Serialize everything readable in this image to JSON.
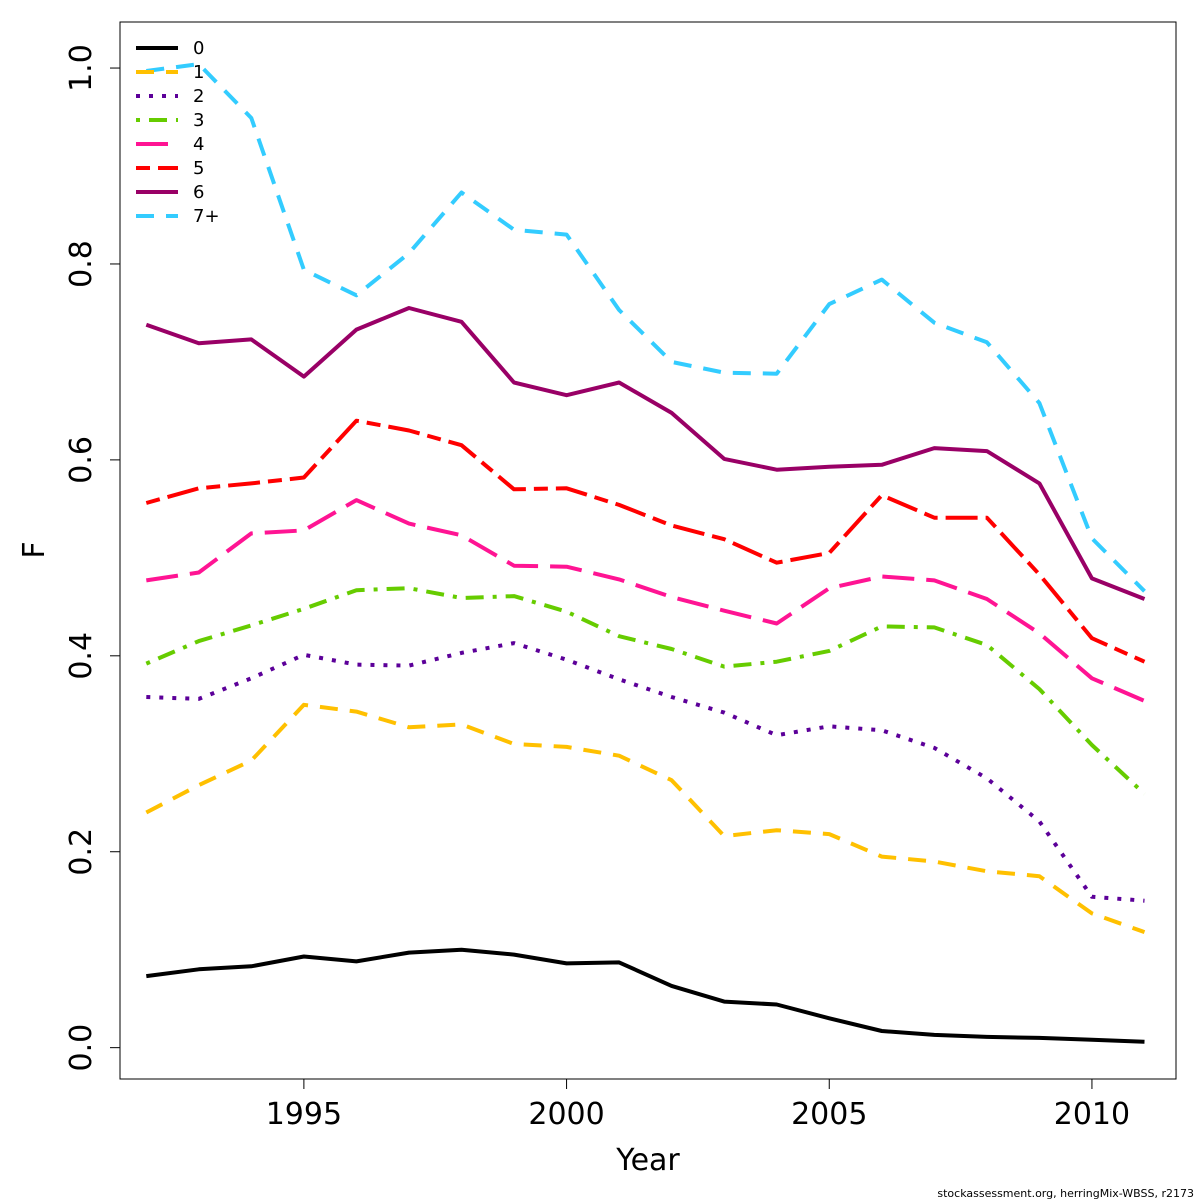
{
  "chart_data": {
    "type": "line",
    "xlabel": "Year",
    "ylabel": "F",
    "xlim": [
      1991.5,
      2011.6
    ],
    "ylim": [
      -0.032,
      1.047
    ],
    "x_ticks": [
      1995,
      2000,
      2005,
      2010
    ],
    "x_tick_labels": [
      "1995",
      "2000",
      "2005",
      "2010"
    ],
    "y_ticks": [
      0.0,
      0.2,
      0.4,
      0.6,
      0.8,
      1.0
    ],
    "y_tick_labels": [
      "0.0",
      "0.2",
      "0.4",
      "0.6",
      "0.8",
      "1.0"
    ],
    "legend_position": "top-left",
    "grid": false,
    "x": [
      1992,
      1993,
      1994,
      1995,
      1996,
      1997,
      1998,
      1999,
      2000,
      2001,
      2002,
      2003,
      2004,
      2005,
      2006,
      2007,
      2008,
      2009,
      2010,
      2011
    ],
    "series": [
      {
        "name": "0",
        "color": "#000000",
        "dash": "solid",
        "values": [
          0.073,
          0.08,
          0.083,
          0.093,
          0.088,
          0.097,
          0.1,
          0.095,
          0.086,
          0.087,
          0.063,
          0.047,
          0.044,
          0.03,
          0.017,
          0.013,
          0.011,
          0.01,
          0.008,
          0.006
        ]
      },
      {
        "name": "1",
        "color": "#ffc000",
        "dash": "dashed",
        "values": [
          0.24,
          0.268,
          0.293,
          0.35,
          0.343,
          0.327,
          0.33,
          0.31,
          0.307,
          0.298,
          0.273,
          0.216,
          0.222,
          0.218,
          0.195,
          0.19,
          0.18,
          0.175,
          0.137,
          0.118
        ]
      },
      {
        "name": "2",
        "color": "#5c0099",
        "dash": "dotted",
        "values": [
          0.358,
          0.356,
          0.377,
          0.401,
          0.391,
          0.39,
          0.403,
          0.413,
          0.396,
          0.376,
          0.358,
          0.342,
          0.319,
          0.328,
          0.324,
          0.306,
          0.275,
          0.231,
          0.154,
          0.15
        ]
      },
      {
        "name": "3",
        "color": "#66cc00",
        "dash": "dotdash",
        "values": [
          0.392,
          0.415,
          0.431,
          0.448,
          0.467,
          0.469,
          0.459,
          0.461,
          0.445,
          0.42,
          0.407,
          0.389,
          0.394,
          0.405,
          0.43,
          0.429,
          0.411,
          0.366,
          0.309,
          0.259
        ]
      },
      {
        "name": "4",
        "color": "#ff1493",
        "dash": "longdash",
        "values": [
          0.477,
          0.485,
          0.525,
          0.528,
          0.559,
          0.535,
          0.523,
          0.492,
          0.491,
          0.478,
          0.46,
          0.446,
          0.433,
          0.469,
          0.481,
          0.477,
          0.458,
          0.423,
          0.377,
          0.354
        ]
      },
      {
        "name": "5",
        "color": "#ff0000",
        "dash": "twodash",
        "values": [
          0.556,
          0.571,
          0.576,
          0.582,
          0.64,
          0.63,
          0.615,
          0.57,
          0.571,
          0.554,
          0.533,
          0.519,
          0.495,
          0.505,
          0.564,
          0.541,
          0.541,
          0.483,
          0.418,
          0.394
        ]
      },
      {
        "name": "6",
        "color": "#990066",
        "dash": "solid",
        "values": [
          0.738,
          0.719,
          0.723,
          0.685,
          0.733,
          0.755,
          0.741,
          0.679,
          0.666,
          0.679,
          0.648,
          0.601,
          0.59,
          0.593,
          0.595,
          0.612,
          0.609,
          0.576,
          0.479,
          0.458
        ]
      },
      {
        "name": "7+",
        "color": "#33ccff",
        "dash": "dashed",
        "values": [
          0.997,
          1.004,
          0.949,
          0.794,
          0.768,
          0.811,
          0.873,
          0.835,
          0.83,
          0.753,
          0.7,
          0.689,
          0.688,
          0.759,
          0.784,
          0.74,
          0.72,
          0.658,
          0.52,
          0.466
        ]
      }
    ]
  },
  "credit": "stockassessment.org, herringMix-WBSS, r2173"
}
